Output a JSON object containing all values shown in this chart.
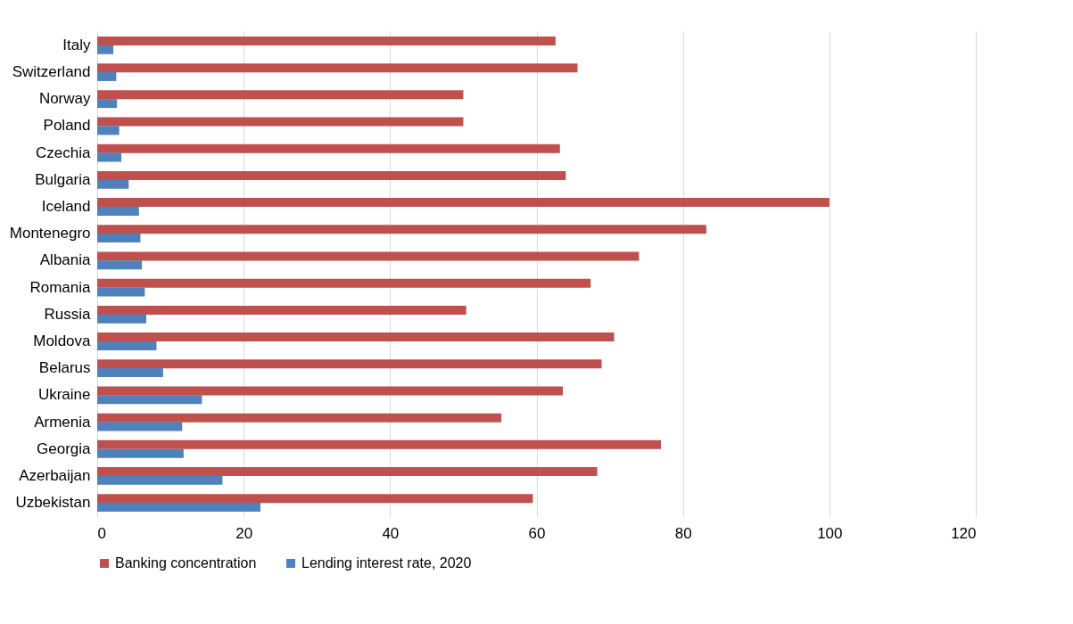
{
  "chart_data": {
    "type": "bar",
    "orientation": "horizontal",
    "categories": [
      "Italy",
      "Switzerland",
      "Norway",
      "Poland",
      "Czechia",
      "Bulgaria",
      "Iceland",
      "Montenegro",
      "Albania",
      "Romania",
      "Russia",
      "Moldova",
      "Belarus",
      "Ukraine",
      "Armenia",
      "Georgia",
      "Azerbaijan",
      "Uzbekistan"
    ],
    "series": [
      {
        "name": "Banking concentration",
        "color": "#c0504d",
        "values": [
          62.6,
          65.6,
          50.0,
          50.0,
          63.2,
          64.0,
          100.0,
          83.2,
          74.0,
          67.4,
          50.4,
          70.6,
          68.9,
          63.6,
          55.2,
          77.0,
          68.3,
          59.5
        ]
      },
      {
        "name": "Lending interest rate, 2020",
        "color": "#4f81bd",
        "values": [
          2.2,
          2.6,
          2.7,
          3.0,
          3.3,
          4.3,
          5.7,
          5.9,
          6.1,
          6.5,
          6.7,
          8.1,
          9.0,
          14.3,
          11.6,
          11.8,
          17.1,
          22.3
        ]
      }
    ],
    "xlim": [
      0,
      120
    ],
    "xticks": [
      0,
      20,
      40,
      60,
      80,
      100,
      120
    ],
    "grid": "x",
    "legend": "bottom"
  }
}
